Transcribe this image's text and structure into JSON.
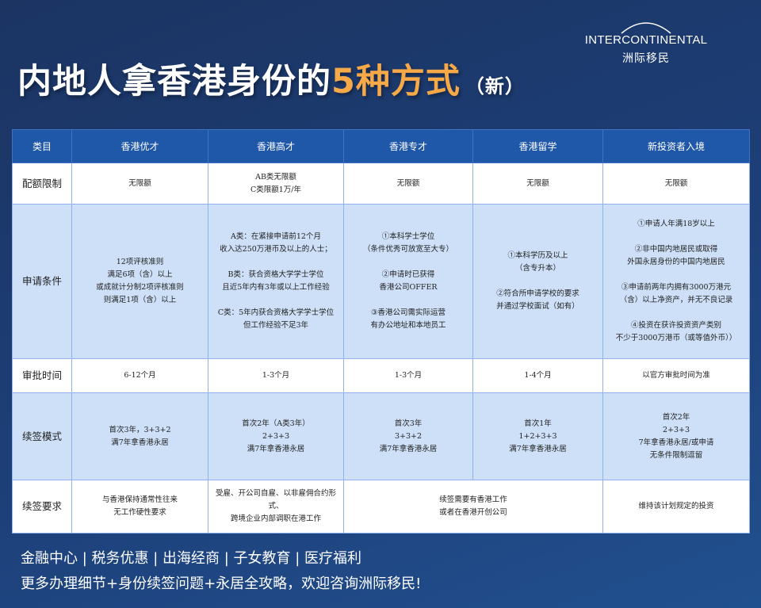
{
  "logo": {
    "en": "INTERCONTINENTAL",
    "cn": "洲际移民"
  },
  "title": {
    "main": "内地人拿香港身份的",
    "highlight": "5种方式",
    "suffix": "（新）"
  },
  "colors": {
    "background": "#1d3f78",
    "header": "#1f57a9",
    "highlight": "#f7a948",
    "row_blue": "#cde0f7"
  },
  "table": {
    "headers": [
      "类目",
      "香港优才",
      "香港高才",
      "香港专才",
      "香港留学",
      "新投资者入境"
    ],
    "rows": [
      {
        "label": "配额限制",
        "cells": [
          "无限额",
          "AB类无限额\nC类限额1万/年",
          "无限额",
          "无限额",
          "无限额"
        ]
      },
      {
        "label": "申请条件",
        "cells": [
          "12项评核准则\n满足6项（含）以上\n或成就计分制2项评核准则\n则满足1项（含）以上",
          "A类：在紧接申请前12个月\n收入达250万港币及以上的人士；\n\nB类：获合资格大学学士学位\n且近5年内有3年或以上工作经验\n\nC类：5年内获合资格大学学士学位\n但工作经验不足3年",
          "①本科学士学位\n（条件优秀可放宽至大专）\n\n②申请时已获得\n香港公司OFFER\n\n③香港公司需实际运营\n有办公地址和本地员工",
          "①本科学历及以上\n（含专升本）\n\n②符合所申请学校的要求\n并通过学校面试（如有）",
          "①申请人年满18岁以上\n\n②非中国内地居民或取得\n外国永居身份的中国内地居民\n\n③申请前两年内拥有3000万港元\n（含）以上净资产，并无不良记录\n\n④投资在获许投资资产类别\n不少于3000万港币（或等值外币））"
        ]
      },
      {
        "label": "审批时间",
        "cells": [
          "6-12个月",
          "1-3个月",
          "1-3个月",
          "1-4个月",
          "以官方审批时间为准"
        ]
      },
      {
        "label": "续签模式",
        "cells": [
          "首次3年，3+3+2\n满7年拿香港永居",
          "首次2年（A类3年）\n2+3+3\n满7年拿香港永居",
          "首次3年\n3+3+2\n满7年拿香港永居",
          "首次1年\n1+2+3+3\n满7年拿香港永居",
          "首次2年\n2+3+3\n7年拿香港永居/或申请\n无条件限制逗留"
        ]
      },
      {
        "label": "续签要求",
        "cells": [
          "与香港保持通常性往来\n无工作硬性要求",
          "受雇、开公司自雇、以非雇佣合约形式、\n跨境企业内部调职在港工作",
          "续签需要有香港工作\n或者在香港开创公司",
          "维持该计划规定的投资"
        ]
      }
    ]
  },
  "footer": {
    "line1": "金融中心 | 税务优惠 | 出海经商 | 子女教育 | 医疗福利",
    "line2": "更多办理细节+身份续签问题+永居全攻略，欢迎咨询洲际移民!"
  }
}
